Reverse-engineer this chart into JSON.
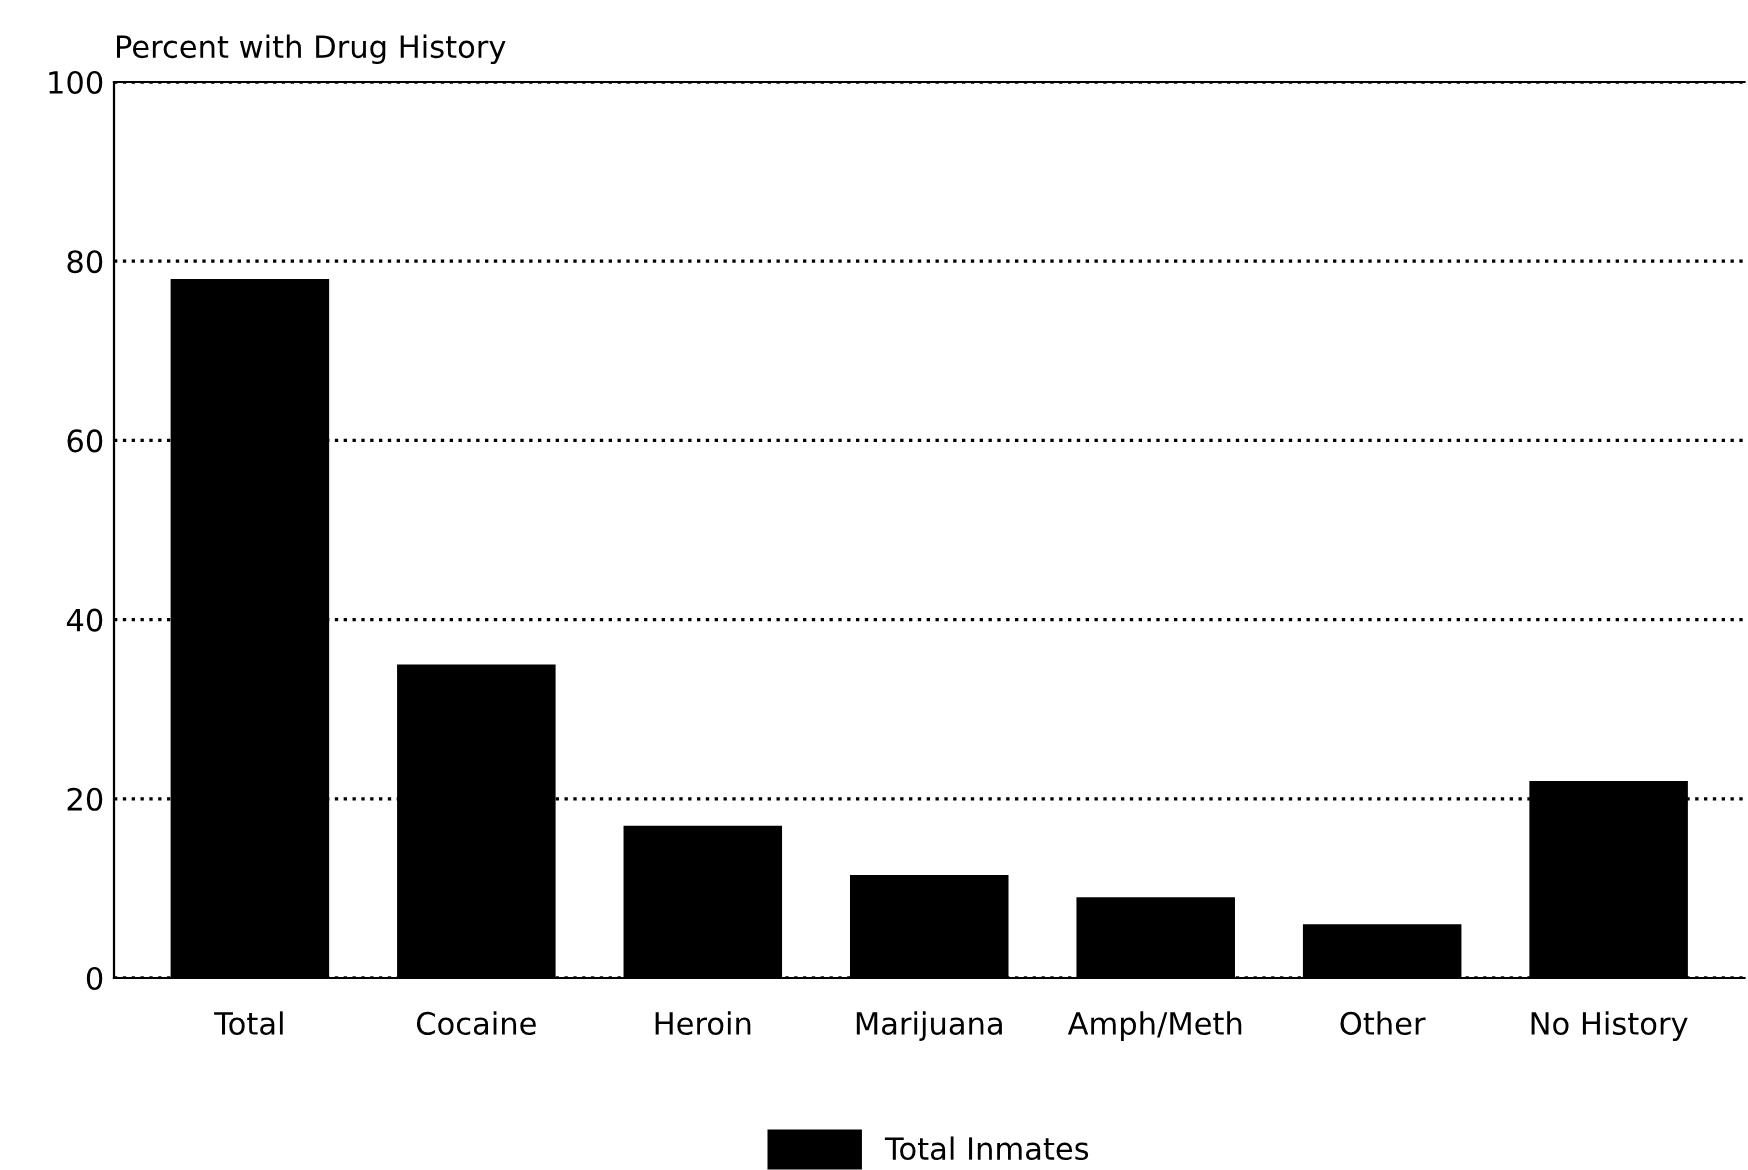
{
  "chart_data": {
    "type": "bar",
    "ylabel": "Percent with Drug History",
    "categories": [
      "Total",
      "Cocaine",
      "Heroin",
      "Marijuana",
      "Amph/Meth",
      "Other",
      "No History"
    ],
    "series": [
      {
        "name": "Total Inmates",
        "color": "#000000",
        "values": [
          78,
          35,
          17,
          11.5,
          9,
          6,
          22
        ]
      }
    ],
    "ylim": [
      0,
      100
    ],
    "yticks": [
      0,
      20,
      40,
      60,
      80,
      100
    ],
    "grid": "y",
    "legend": "bottom"
  }
}
